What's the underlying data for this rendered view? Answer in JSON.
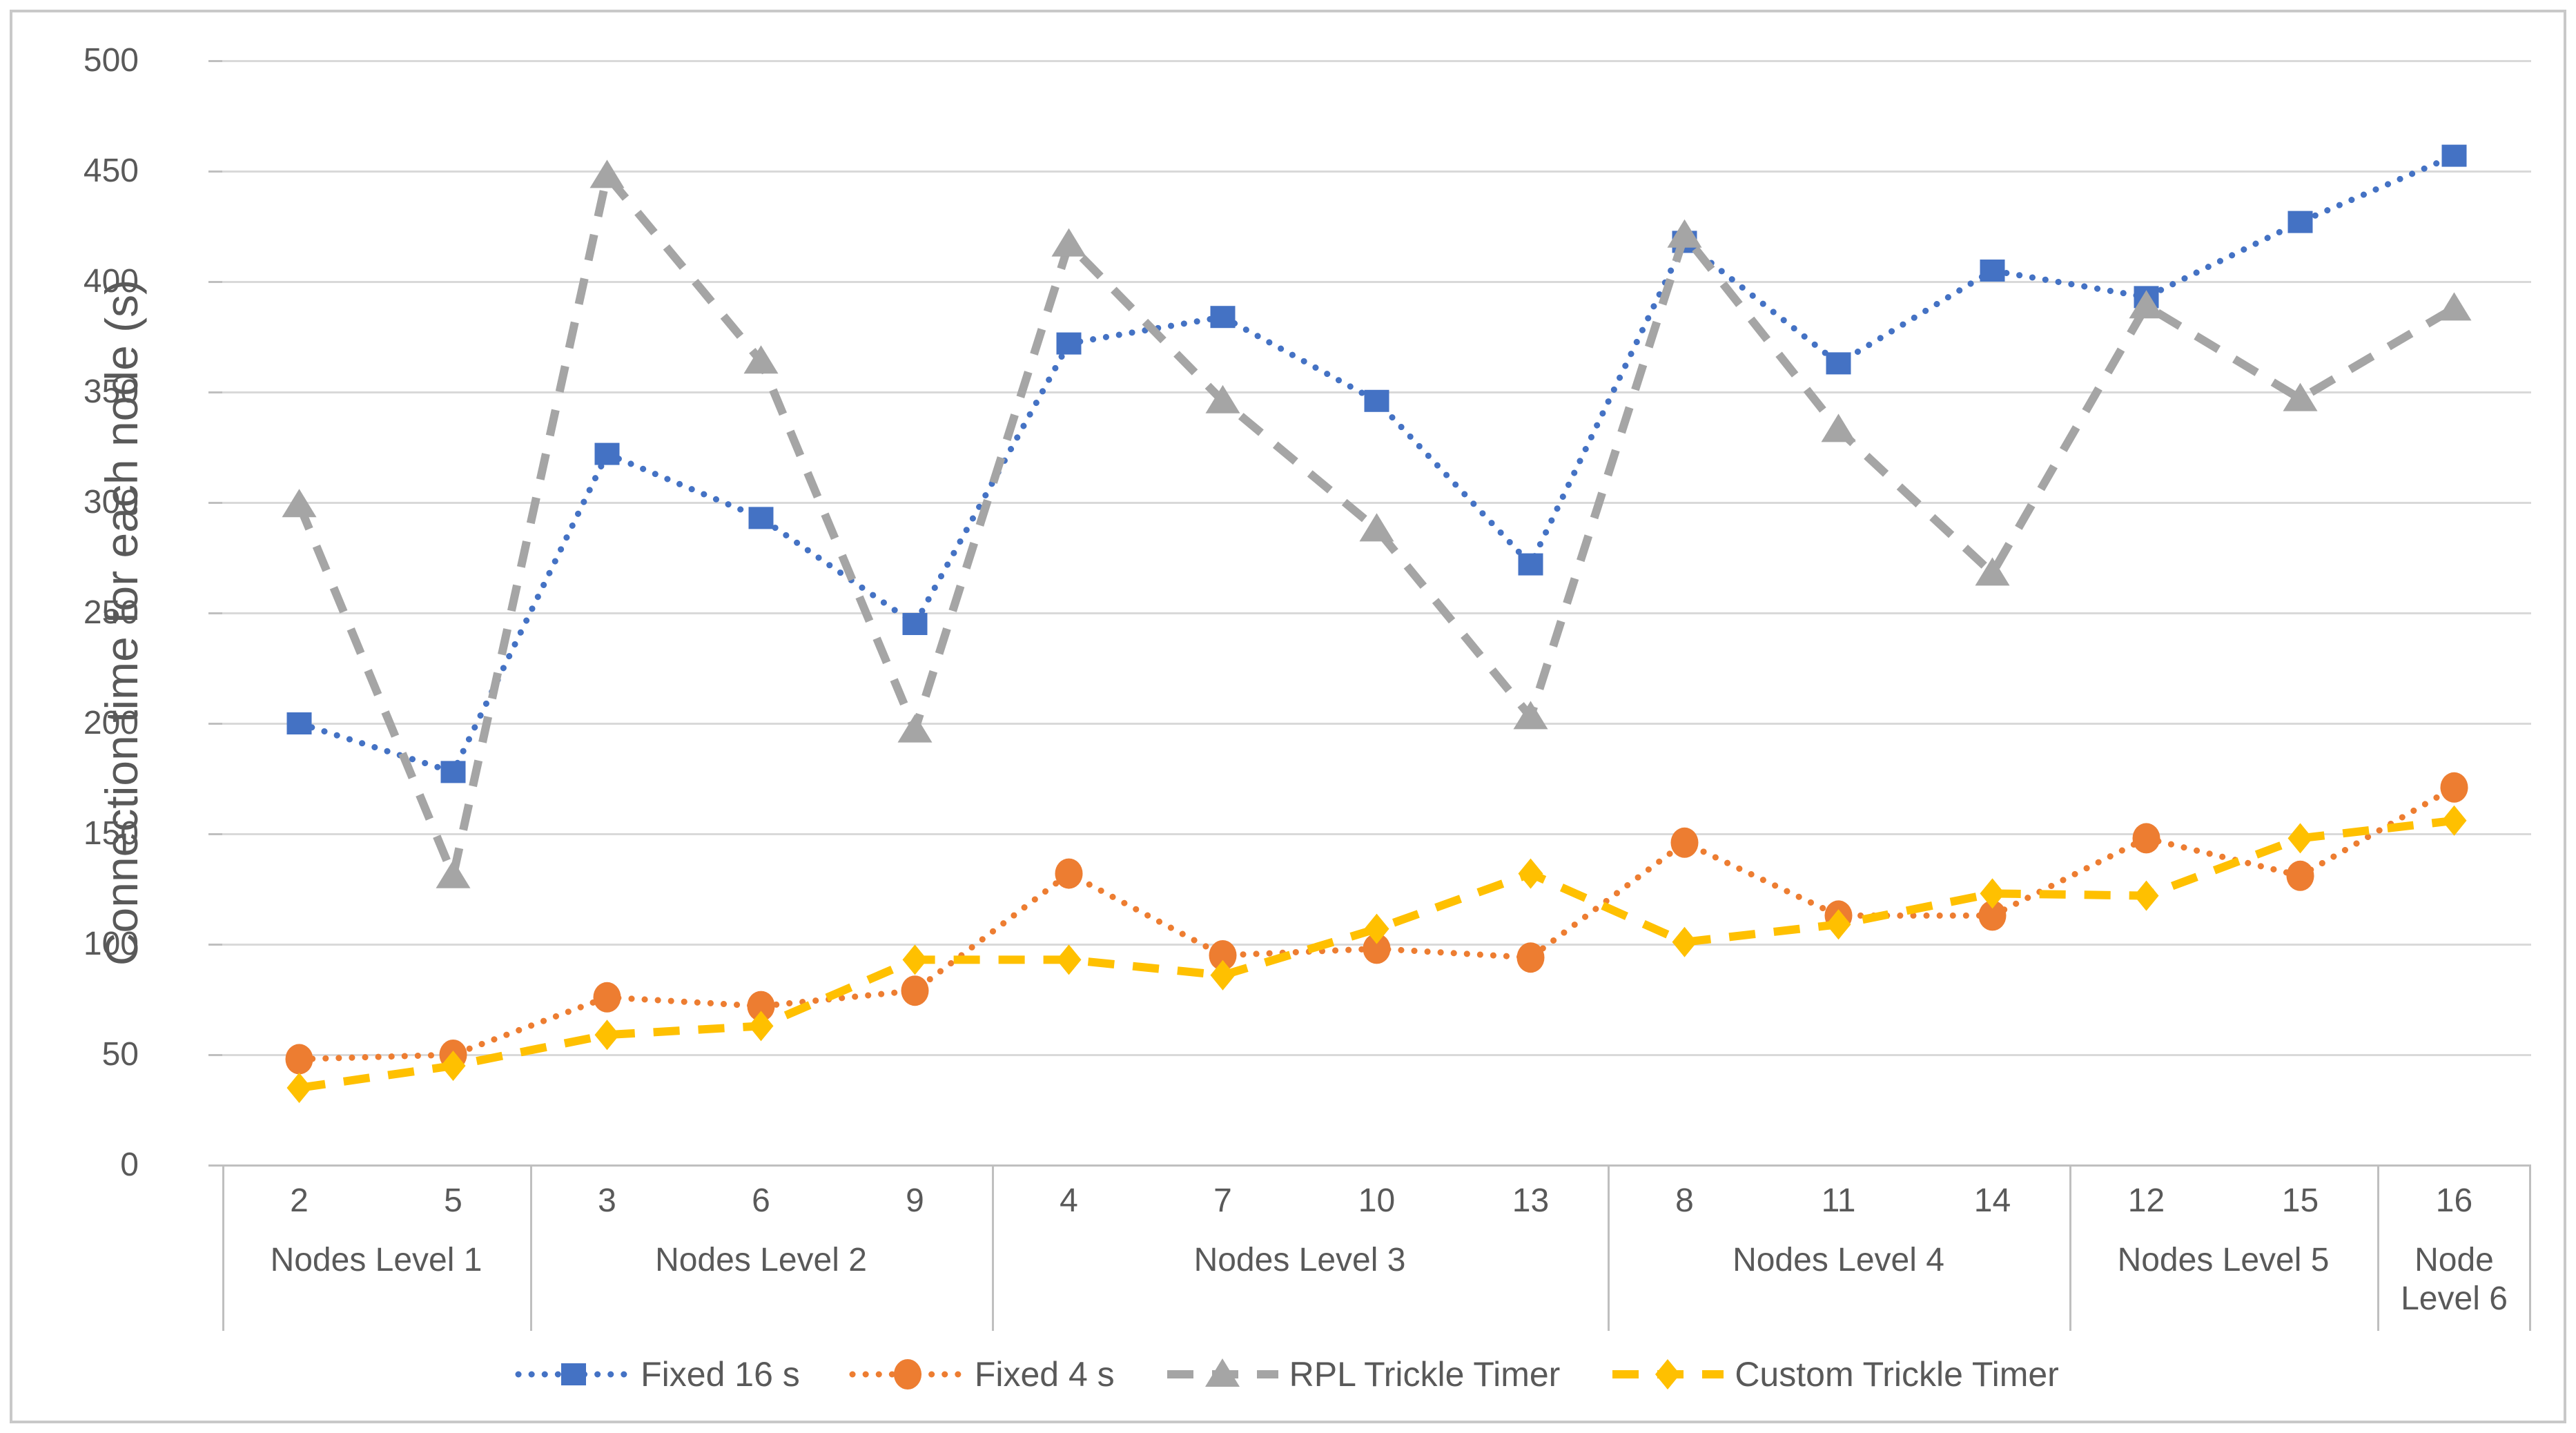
{
  "chart_data": {
    "type": "line",
    "title": "",
    "xlabel": "",
    "ylabel": "Connection time for each node (s)",
    "ylim": [
      0,
      500
    ],
    "yticks": [
      0,
      50,
      100,
      150,
      200,
      250,
      300,
      350,
      400,
      450,
      500
    ],
    "grid": "horizontal",
    "legend_position": "bottom",
    "categories": [
      "2",
      "5",
      "3",
      "6",
      "9",
      "4",
      "7",
      "10",
      "13",
      "8",
      "11",
      "14",
      "12",
      "15",
      "16"
    ],
    "category_groups": [
      {
        "label": "Nodes Level 1",
        "count": 2
      },
      {
        "label": "Nodes Level 2",
        "count": 3
      },
      {
        "label": "Nodes Level 3",
        "count": 4
      },
      {
        "label": "Nodes Level 4",
        "count": 3
      },
      {
        "label": "Nodes Level 5",
        "count": 2
      },
      {
        "label": "Node Level 6",
        "count": 1
      }
    ],
    "series": [
      {
        "name": "Fixed 16 s",
        "color": "#4472C4",
        "marker": "square",
        "line_style": "dotted",
        "values": [
          200,
          178,
          322,
          293,
          245,
          372,
          384,
          346,
          272,
          418,
          363,
          405,
          393,
          427,
          457
        ]
      },
      {
        "name": "Fixed 4 s",
        "color": "#ED7D31",
        "marker": "circle",
        "line_style": "dotted",
        "values": [
          48,
          50,
          76,
          72,
          79,
          132,
          95,
          98,
          94,
          146,
          113,
          113,
          148,
          131,
          171
        ]
      },
      {
        "name": "RPL Trickle Timer",
        "color": "#A5A5A5",
        "marker": "triangle",
        "line_style": "dashed",
        "values": [
          299,
          131,
          448,
          364,
          197,
          417,
          346,
          288,
          203,
          421,
          333,
          268,
          389,
          347,
          388
        ]
      },
      {
        "name": "Custom Trickle Timer",
        "color": "#FFC000",
        "marker": "diamond",
        "line_style": "dashed",
        "values": [
          35,
          45,
          59,
          63,
          93,
          93,
          86,
          107,
          132,
          101,
          109,
          123,
          122,
          148,
          156
        ]
      }
    ],
    "colors": {
      "gridline": "#D9D9D9",
      "axis_line": "#BFBFBF",
      "text": "#595959",
      "frame_border": "#C9C9C9"
    }
  }
}
